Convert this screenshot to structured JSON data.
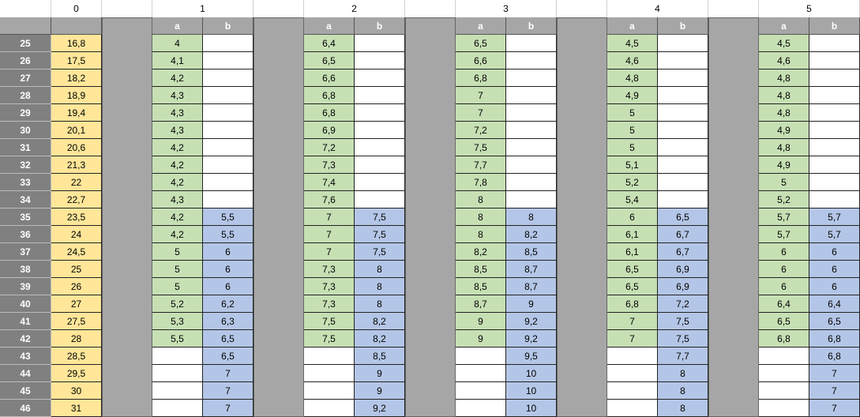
{
  "header": {
    "base": "0",
    "groups": [
      {
        "label": "1",
        "sub": [
          "a",
          "b"
        ]
      },
      {
        "label": "2",
        "sub": [
          "a",
          "b"
        ]
      },
      {
        "label": "3",
        "sub": [
          "a",
          "b"
        ]
      },
      {
        "label": "4",
        "sub": [
          "a",
          "b"
        ]
      },
      {
        "label": "5",
        "sub": [
          "a",
          "b"
        ]
      }
    ]
  },
  "table": {
    "rows": [
      [
        "25",
        "16,8",
        "4",
        null,
        "6,4",
        null,
        "6,5",
        null,
        "4,5",
        null,
        "4,5",
        null
      ],
      [
        "26",
        "17,5",
        "4,1",
        null,
        "6,5",
        null,
        "6,6",
        null,
        "4,6",
        null,
        "4,6",
        null
      ],
      [
        "27",
        "18,2",
        "4,2",
        null,
        "6,6",
        null,
        "6,8",
        null,
        "4,8",
        null,
        "4,8",
        null
      ],
      [
        "28",
        "18,9",
        "4,3",
        null,
        "6,8",
        null,
        "7",
        null,
        "4,9",
        null,
        "4,8",
        null
      ],
      [
        "29",
        "19,4",
        "4,3",
        null,
        "6,8",
        null,
        "7",
        null,
        "5",
        null,
        "4,8",
        null
      ],
      [
        "30",
        "20,1",
        "4,3",
        null,
        "6,9",
        null,
        "7,2",
        null,
        "5",
        null,
        "4,9",
        null
      ],
      [
        "31",
        "20,6",
        "4,2",
        null,
        "7,2",
        null,
        "7,5",
        null,
        "5",
        null,
        "4,8",
        null
      ],
      [
        "32",
        "21,3",
        "4,2",
        null,
        "7,3",
        null,
        "7,7",
        null,
        "5,1",
        null,
        "4,9",
        null
      ],
      [
        "33",
        "22",
        "4,2",
        null,
        "7,4",
        null,
        "7,8",
        null,
        "5,2",
        null,
        "5",
        null
      ],
      [
        "34",
        "22,7",
        "4,3",
        null,
        "7,6",
        null,
        "8",
        null,
        "5,4",
        null,
        "5,2",
        null
      ],
      [
        "35",
        "23,5",
        "4,2",
        "5,5",
        "7",
        "7,5",
        "8",
        "8",
        "6",
        "6,5",
        "5,7",
        "5,7"
      ],
      [
        "36",
        "24",
        "4,2",
        "5,5",
        "7",
        "7,5",
        "8",
        "8,2",
        "6,1",
        "6,7",
        "5,7",
        "5,7"
      ],
      [
        "37",
        "24,5",
        "5",
        "6",
        "7",
        "7,5",
        "8,2",
        "8,5",
        "6,1",
        "6,7",
        "6",
        "6"
      ],
      [
        "38",
        "25",
        "5",
        "6",
        "7,3",
        "8",
        "8,5",
        "8,7",
        "6,5",
        "6,9",
        "6",
        "6"
      ],
      [
        "39",
        "26",
        "5",
        "6",
        "7,3",
        "8",
        "8,5",
        "8,7",
        "6,5",
        "6,9",
        "6",
        "6"
      ],
      [
        "40",
        "27",
        "5,2",
        "6,2",
        "7,3",
        "8",
        "8,7",
        "9",
        "6,8",
        "7,2",
        "6,4",
        "6,4"
      ],
      [
        "41",
        "27,5",
        "5,3",
        "6,3",
        "7,5",
        "8,2",
        "9",
        "9,2",
        "7",
        "7,5",
        "6,5",
        "6,5"
      ],
      [
        "42",
        "28",
        "5,5",
        "6,5",
        "7,5",
        "8,2",
        "9",
        "9,2",
        "7",
        "7,5",
        "6,8",
        "6,8"
      ],
      [
        "43",
        "28,5",
        null,
        "6,5",
        null,
        "8,5",
        null,
        "9,5",
        null,
        "7,7",
        null,
        "6,8"
      ],
      [
        "44",
        "29,5",
        null,
        "7",
        null,
        "9",
        null,
        "10",
        null,
        "8",
        null,
        "7"
      ],
      [
        "45",
        "30",
        null,
        "7",
        null,
        "9",
        null,
        "10",
        null,
        "8",
        null,
        "7"
      ],
      [
        "46",
        "31",
        null,
        "7",
        null,
        "9,2",
        null,
        "10",
        null,
        "8",
        null,
        "7"
      ]
    ]
  }
}
